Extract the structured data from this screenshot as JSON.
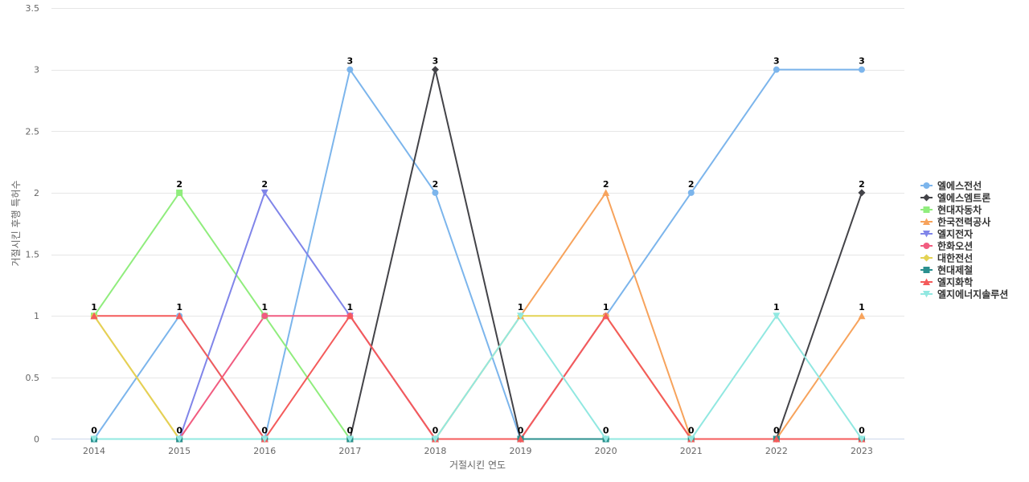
{
  "chart_data": {
    "type": "line",
    "xlabel": "거절시킨 연도",
    "ylabel": "거절시킨 후행 특허수",
    "ylim": [
      0,
      3.5
    ],
    "yticks": [
      0,
      0.5,
      1,
      1.5,
      2,
      2.5,
      3,
      3.5
    ],
    "grid": true,
    "legend_position": "right",
    "categories": [
      "2014",
      "2015",
      "2016",
      "2017",
      "2018",
      "2019",
      "2020",
      "2021",
      "2022",
      "2023"
    ],
    "series": [
      {
        "name": "엘에스전선",
        "color": "#7cb5ec",
        "marker": "circle",
        "values": [
          0,
          1,
          0,
          3,
          2,
          0,
          1,
          2,
          3,
          3
        ]
      },
      {
        "name": "엘에스엠트론",
        "color": "#434348",
        "marker": "diamond",
        "values": [
          0,
          0,
          0,
          0,
          3,
          0,
          0,
          0,
          0,
          2
        ]
      },
      {
        "name": "현대자동차",
        "color": "#90ed7d",
        "marker": "square",
        "values": [
          1,
          2,
          1,
          0,
          0,
          0,
          0,
          0,
          0,
          0
        ]
      },
      {
        "name": "한국전력공사",
        "color": "#f7a35c",
        "marker": "triangle",
        "values": [
          1,
          0,
          0,
          0,
          0,
          1,
          2,
          0,
          0,
          1
        ]
      },
      {
        "name": "엘지전자",
        "color": "#8085e9",
        "marker": "triangle-down",
        "values": [
          0,
          0,
          2,
          1,
          0,
          0,
          0,
          0,
          0,
          0
        ]
      },
      {
        "name": "한화오션",
        "color": "#f15c80",
        "marker": "circle",
        "values": [
          0,
          0,
          1,
          1,
          0,
          0,
          1,
          0,
          0,
          0
        ]
      },
      {
        "name": "대한전선",
        "color": "#e4d354",
        "marker": "diamond",
        "values": [
          1,
          0,
          0,
          0,
          0,
          1,
          1,
          0,
          0,
          0
        ]
      },
      {
        "name": "현대제철",
        "color": "#2b908f",
        "marker": "square",
        "values": [
          0,
          0,
          0,
          0,
          0,
          0,
          0,
          0,
          0,
          0
        ]
      },
      {
        "name": "엘지화학",
        "color": "#f45b5b",
        "marker": "triangle",
        "values": [
          1,
          1,
          0,
          1,
          0,
          0,
          1,
          0,
          0,
          0
        ]
      },
      {
        "name": "엘지에너지솔루션",
        "color": "#91e8e1",
        "marker": "triangle-down",
        "values": [
          0,
          0,
          0,
          0,
          0,
          1,
          0,
          0,
          1,
          0
        ]
      }
    ],
    "data_labels": [
      {
        "x": "2014",
        "y": 1,
        "text": "1"
      },
      {
        "x": "2014",
        "y": 0,
        "text": "0"
      },
      {
        "x": "2015",
        "y": 2,
        "text": "2"
      },
      {
        "x": "2015",
        "y": 1,
        "text": "1"
      },
      {
        "x": "2015",
        "y": 0,
        "text": "0"
      },
      {
        "x": "2016",
        "y": 2,
        "text": "2"
      },
      {
        "x": "2016",
        "y": 1,
        "text": "1"
      },
      {
        "x": "2016",
        "y": 0,
        "text": "0"
      },
      {
        "x": "2017",
        "y": 3,
        "text": "3"
      },
      {
        "x": "2017",
        "y": 1,
        "text": "1"
      },
      {
        "x": "2017",
        "y": 0,
        "text": "0"
      },
      {
        "x": "2018",
        "y": 3,
        "text": "3"
      },
      {
        "x": "2018",
        "y": 2,
        "text": "2"
      },
      {
        "x": "2018",
        "y": 0,
        "text": "0"
      },
      {
        "x": "2019",
        "y": 1,
        "text": "1"
      },
      {
        "x": "2019",
        "y": 0,
        "text": "0"
      },
      {
        "x": "2020",
        "y": 2,
        "text": "2"
      },
      {
        "x": "2020",
        "y": 1,
        "text": "1"
      },
      {
        "x": "2020",
        "y": 0,
        "text": "0"
      },
      {
        "x": "2021",
        "y": 2,
        "text": "2"
      },
      {
        "x": "2021",
        "y": 0,
        "text": "0"
      },
      {
        "x": "2022",
        "y": 3,
        "text": "3"
      },
      {
        "x": "2022",
        "y": 1,
        "text": "1"
      },
      {
        "x": "2022",
        "y": 0,
        "text": "0"
      },
      {
        "x": "2023",
        "y": 3,
        "text": "3"
      },
      {
        "x": "2023",
        "y": 2,
        "text": "2"
      },
      {
        "x": "2023",
        "y": 1,
        "text": "1"
      },
      {
        "x": "2023",
        "y": 0,
        "text": "0"
      }
    ]
  }
}
